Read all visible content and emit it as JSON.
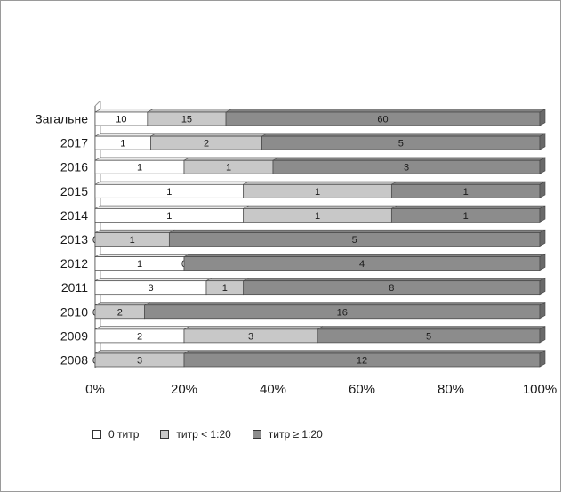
{
  "chart_data": {
    "type": "bar",
    "orientation": "horizontal",
    "stacked": "percent",
    "categories": [
      "Загальне",
      "2017",
      "2016",
      "2015",
      "2014",
      "2013",
      "2012",
      "2011",
      "2010",
      "2009",
      "2008"
    ],
    "series": [
      {
        "name": "0 титр",
        "color": "#ffffff",
        "values": [
          10,
          1,
          1,
          1,
          1,
          0,
          1,
          3,
          0,
          2,
          0
        ]
      },
      {
        "name": "титр < 1:20",
        "color": "#c8c8c8",
        "values": [
          15,
          2,
          1,
          1,
          1,
          1,
          0,
          1,
          2,
          3,
          3
        ]
      },
      {
        "name": "титр ≥ 1:20",
        "color": "#8c8c8c",
        "values": [
          60,
          5,
          3,
          1,
          1,
          5,
          4,
          8,
          16,
          5,
          12
        ]
      }
    ],
    "x_ticks": [
      "0%",
      "20%",
      "40%",
      "60%",
      "80%",
      "100%"
    ],
    "xlim": [
      0,
      100
    ],
    "legend_position": "bottom-left",
    "grid": false
  }
}
